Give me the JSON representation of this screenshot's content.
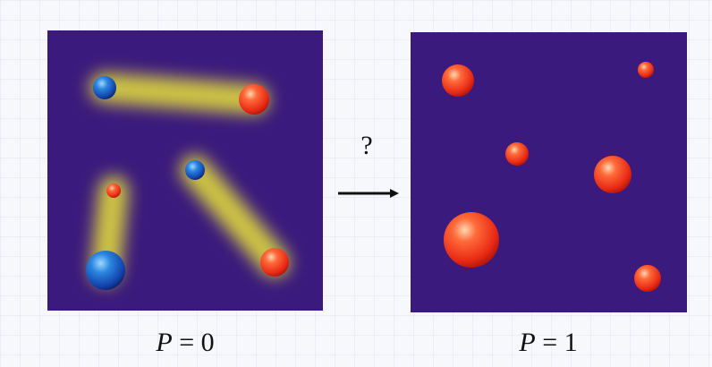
{
  "question_mark": "?",
  "left_panel": {
    "label": {
      "symbol": "P",
      "rest": "= 0"
    }
  },
  "right_panel": {
    "label": {
      "symbol": "P",
      "rest": "= 1"
    }
  }
}
